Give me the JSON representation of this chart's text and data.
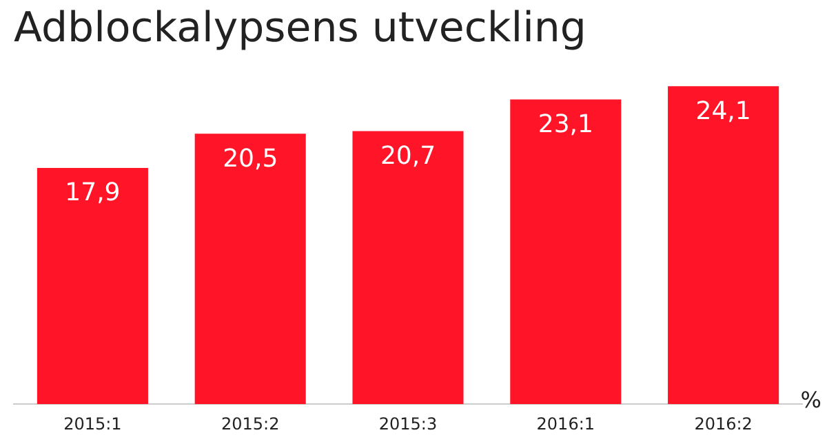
{
  "chart_data": {
    "type": "bar",
    "title": "Adblockalypsens utveckling",
    "categories": [
      "2015:1",
      "2015:2",
      "2015:3",
      "2016:1",
      "2016:2"
    ],
    "values": [
      17.9,
      20.5,
      20.7,
      23.1,
      24.1
    ],
    "color": "#ff1428",
    "value_labels": [
      "17,9",
      "20,5",
      "20,7",
      "23,1",
      "24,1"
    ],
    "annotations": [
      "%"
    ],
    "grid": false,
    "legend": false
  }
}
